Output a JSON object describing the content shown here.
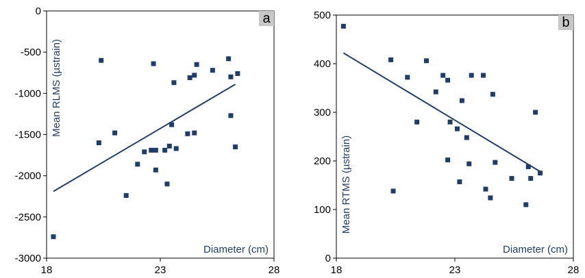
{
  "chart_data": [
    {
      "type": "scatter",
      "panel_label": "a",
      "xlabel": "Diameter (cm)",
      "ylabel": "Mean RLMS (µstrain)",
      "xlim": [
        18,
        28
      ],
      "ylim": [
        -3000,
        0
      ],
      "xticks": [
        "18",
        "23",
        "28"
      ],
      "yticks": [
        "0",
        "-500",
        "-1000",
        "-1500",
        "-2000",
        "-2500",
        "-3000"
      ],
      "points": [
        {
          "x": 18.3,
          "y": -2740
        },
        {
          "x": 20.3,
          "y": -1600
        },
        {
          "x": 20.4,
          "y": -600
        },
        {
          "x": 21.0,
          "y": -1480
        },
        {
          "x": 21.5,
          "y": -2240
        },
        {
          "x": 22.0,
          "y": -1860
        },
        {
          "x": 22.3,
          "y": -1710
        },
        {
          "x": 22.6,
          "y": -1690
        },
        {
          "x": 22.7,
          "y": -640
        },
        {
          "x": 22.8,
          "y": -1690
        },
        {
          "x": 22.8,
          "y": -1930
        },
        {
          "x": 23.2,
          "y": -1690
        },
        {
          "x": 23.3,
          "y": -2100
        },
        {
          "x": 23.4,
          "y": -1640
        },
        {
          "x": 23.5,
          "y": -1380
        },
        {
          "x": 23.6,
          "y": -870
        },
        {
          "x": 23.7,
          "y": -1670
        },
        {
          "x": 24.2,
          "y": -1490
        },
        {
          "x": 24.3,
          "y": -810
        },
        {
          "x": 24.5,
          "y": -780
        },
        {
          "x": 24.5,
          "y": -1480
        },
        {
          "x": 24.6,
          "y": -650
        },
        {
          "x": 25.3,
          "y": -720
        },
        {
          "x": 26.0,
          "y": -580
        },
        {
          "x": 26.1,
          "y": -800
        },
        {
          "x": 26.1,
          "y": -1270
        },
        {
          "x": 26.3,
          "y": -1650
        },
        {
          "x": 26.4,
          "y": -760
        }
      ],
      "trendline": [
        {
          "x": 18.3,
          "y": -2190
        },
        {
          "x": 26.3,
          "y": -890
        }
      ],
      "grid": false
    },
    {
      "type": "scatter",
      "panel_label": "b",
      "xlabel": "Diameter (cm)",
      "ylabel": "Mean RTMS (µstrain)",
      "xlim": [
        18,
        28
      ],
      "ylim": [
        0,
        500
      ],
      "xticks": [
        "18",
        "23",
        "28"
      ],
      "yticks": [
        "500",
        "400",
        "300",
        "200",
        "100",
        "0"
      ],
      "points": [
        {
          "x": 18.3,
          "y": 477
        },
        {
          "x": 20.3,
          "y": 408
        },
        {
          "x": 20.4,
          "y": 138
        },
        {
          "x": 21.0,
          "y": 372
        },
        {
          "x": 21.4,
          "y": 280
        },
        {
          "x": 21.8,
          "y": 406
        },
        {
          "x": 22.2,
          "y": 342
        },
        {
          "x": 22.5,
          "y": 376
        },
        {
          "x": 22.7,
          "y": 366
        },
        {
          "x": 22.7,
          "y": 202
        },
        {
          "x": 22.8,
          "y": 280
        },
        {
          "x": 23.1,
          "y": 266
        },
        {
          "x": 23.2,
          "y": 157
        },
        {
          "x": 23.3,
          "y": 324
        },
        {
          "x": 23.5,
          "y": 248
        },
        {
          "x": 23.6,
          "y": 194
        },
        {
          "x": 23.7,
          "y": 376
        },
        {
          "x": 24.2,
          "y": 376
        },
        {
          "x": 24.3,
          "y": 142
        },
        {
          "x": 24.5,
          "y": 124
        },
        {
          "x": 24.6,
          "y": 337
        },
        {
          "x": 24.7,
          "y": 197
        },
        {
          "x": 25.4,
          "y": 164
        },
        {
          "x": 26.0,
          "y": 110
        },
        {
          "x": 26.1,
          "y": 188
        },
        {
          "x": 26.2,
          "y": 164
        },
        {
          "x": 26.4,
          "y": 300
        },
        {
          "x": 26.6,
          "y": 175
        }
      ],
      "trendline": [
        {
          "x": 18.3,
          "y": 422
        },
        {
          "x": 26.6,
          "y": 178
        }
      ],
      "grid": false
    }
  ],
  "colors": {
    "marker": "#1f3d6b",
    "trendline": "#1f3d6b",
    "label_text": "#1f3d6b",
    "axis": "#000000",
    "panel_tag_bg": "#c8c8c8"
  }
}
